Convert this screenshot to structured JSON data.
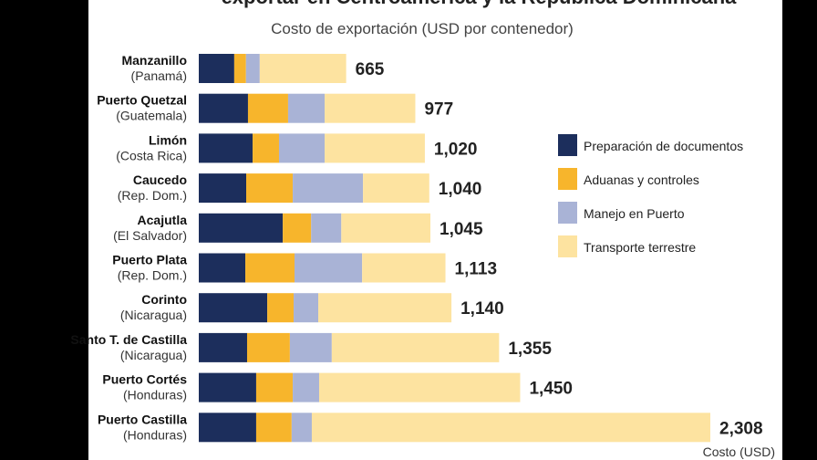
{
  "chart_data": {
    "type": "bar",
    "orientation": "horizontal",
    "stacked": true,
    "title": "exportar en Centroamérica y la República Dominicana",
    "subtitle": "Costo de exportación (USD por contenedor)",
    "xlabel": "Costo (USD)",
    "xlim": [
      0,
      2308
    ],
    "grid": false,
    "legend_placement": "right",
    "categories": [
      {
        "name": "Manzanillo",
        "country": "(Panamá)",
        "total": "665"
      },
      {
        "name": "Puerto Quetzal",
        "country": "(Guatemala)",
        "total": "977"
      },
      {
        "name": "Limón",
        "country": "(Costa Rica)",
        "total": "1,020"
      },
      {
        "name": "Caucedo",
        "country": "(Rep. Dom.)",
        "total": "1,040"
      },
      {
        "name": "Acajutla",
        "country": "(El Salvador)",
        "total": "1,045"
      },
      {
        "name": "Puerto Plata",
        "country": "(Rep. Dom.)",
        "total": "1,113"
      },
      {
        "name": "Corinto",
        "country": "(Nicaragua)",
        "total": "1,140"
      },
      {
        "name": "Santo T. de Castilla",
        "country": "(Nicaragua)",
        "total": "1,355"
      },
      {
        "name": "Puerto Cortés",
        "country": "(Honduras)",
        "total": "1,450"
      },
      {
        "name": "Puerto Castilla",
        "country": "(Honduras)",
        "total": "2,308"
      }
    ],
    "series": [
      {
        "name": "Preparación de documentos",
        "color": "#1c2e5c",
        "values": [
          160,
          222,
          243,
          214,
          379,
          210,
          309,
          218,
          259,
          259
        ]
      },
      {
        "name": "Aduanas y controles",
        "color": "#f7b52c",
        "values": [
          53,
          181,
          119,
          210,
          128,
          222,
          119,
          193,
          165,
          160
        ]
      },
      {
        "name": "Manejo en Puerto",
        "color": "#a9b3d6",
        "values": [
          62,
          165,
          206,
          317,
          136,
          305,
          111,
          189,
          119,
          91
        ]
      },
      {
        "name": "Transporte terrestre",
        "color": "#fde3a0",
        "values": [
          390,
          409,
          452,
          299,
          402,
          376,
          601,
          755,
          907,
          1798
        ]
      }
    ]
  }
}
